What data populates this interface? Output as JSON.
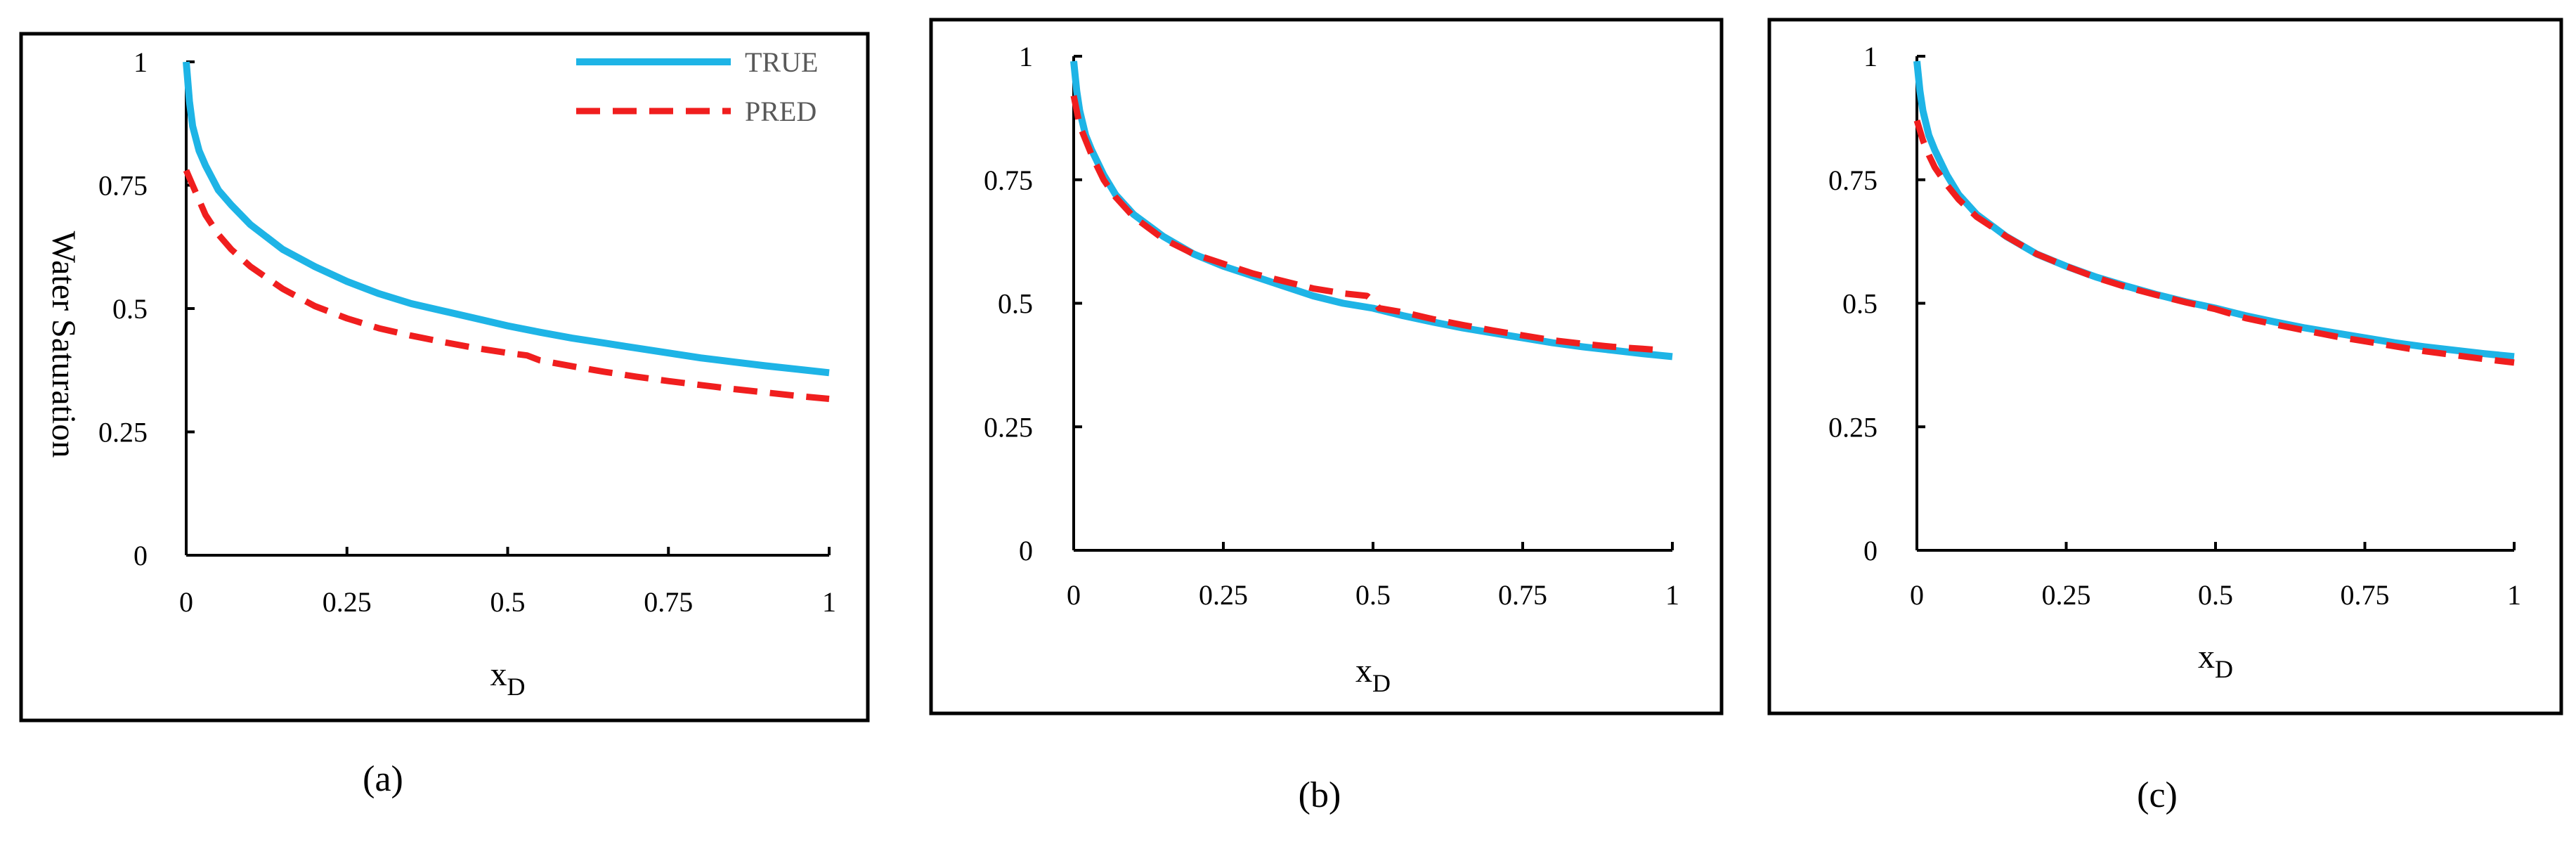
{
  "figure": {
    "colors": {
      "true_line": "#1EB4E6",
      "pred_line": "#F01E1E",
      "frame": "#000000",
      "background": "#FFFFFF"
    }
  },
  "chart_data": [
    {
      "type": "line",
      "caption": "(a)",
      "xlabel": "x",
      "xlabel_subscript": "D",
      "ylabel": "Water Saturation",
      "xlim": [
        0,
        1
      ],
      "ylim": [
        0,
        1
      ],
      "xticks": [
        "0",
        "0.25",
        "0.5",
        "0.75",
        "1"
      ],
      "yticks": [
        "0",
        "0.25",
        "0.5",
        "0.75",
        "1"
      ],
      "grid": false,
      "legend": {
        "position": "top-right",
        "entries": [
          "TRUE",
          "PRED"
        ]
      },
      "series": [
        {
          "name": "TRUE",
          "style": "solid",
          "x": [
            0,
            0.005,
            0.01,
            0.02,
            0.03,
            0.05,
            0.07,
            0.1,
            0.15,
            0.2,
            0.25,
            0.3,
            0.35,
            0.4,
            0.45,
            0.5,
            0.55,
            0.6,
            0.65,
            0.7,
            0.75,
            0.8,
            0.85,
            0.9,
            0.95,
            1.0
          ],
          "y": [
            1.0,
            0.92,
            0.87,
            0.82,
            0.79,
            0.74,
            0.71,
            0.67,
            0.62,
            0.585,
            0.555,
            0.53,
            0.51,
            0.495,
            0.48,
            0.465,
            0.452,
            0.44,
            0.43,
            0.42,
            0.41,
            0.4,
            0.392,
            0.384,
            0.377,
            0.37
          ]
        },
        {
          "name": "PRED",
          "style": "dashed",
          "x": [
            0,
            0.01,
            0.02,
            0.03,
            0.05,
            0.07,
            0.1,
            0.15,
            0.2,
            0.25,
            0.3,
            0.35,
            0.4,
            0.45,
            0.5,
            0.53,
            0.55,
            0.6,
            0.65,
            0.7,
            0.75,
            0.8,
            0.85,
            0.9,
            0.95,
            1.0
          ],
          "y": [
            0.78,
            0.75,
            0.72,
            0.69,
            0.65,
            0.62,
            0.585,
            0.54,
            0.505,
            0.48,
            0.46,
            0.445,
            0.432,
            0.42,
            0.41,
            0.405,
            0.395,
            0.383,
            0.372,
            0.362,
            0.353,
            0.345,
            0.337,
            0.33,
            0.323,
            0.317
          ]
        }
      ]
    },
    {
      "type": "line",
      "caption": "(b)",
      "xlabel": "x",
      "xlabel_subscript": "D",
      "ylabel": "",
      "xlim": [
        0,
        1
      ],
      "ylim": [
        0,
        1
      ],
      "xticks": [
        "0",
        "0.25",
        "0.5",
        "0.75",
        "1"
      ],
      "yticks": [
        "0",
        "0.25",
        "0.5",
        "0.75",
        "1"
      ],
      "grid": false,
      "series": [
        {
          "name": "TRUE",
          "style": "solid",
          "x": [
            0,
            0.005,
            0.01,
            0.02,
            0.03,
            0.05,
            0.07,
            0.1,
            0.15,
            0.2,
            0.25,
            0.3,
            0.35,
            0.4,
            0.45,
            0.5,
            0.55,
            0.6,
            0.65,
            0.7,
            0.75,
            0.8,
            0.85,
            0.9,
            0.95,
            1.0
          ],
          "y": [
            0.99,
            0.93,
            0.89,
            0.84,
            0.81,
            0.76,
            0.72,
            0.68,
            0.635,
            0.6,
            0.575,
            0.555,
            0.535,
            0.515,
            0.5,
            0.49,
            0.475,
            0.462,
            0.45,
            0.44,
            0.43,
            0.42,
            0.412,
            0.405,
            0.398,
            0.392
          ]
        },
        {
          "name": "PRED",
          "style": "dashed",
          "x": [
            0,
            0.01,
            0.02,
            0.03,
            0.05,
            0.07,
            0.1,
            0.15,
            0.2,
            0.25,
            0.3,
            0.35,
            0.4,
            0.45,
            0.49,
            0.5,
            0.51,
            0.55,
            0.6,
            0.65,
            0.7,
            0.75,
            0.8,
            0.85,
            0.9,
            0.95,
            0.98
          ],
          "y": [
            0.92,
            0.86,
            0.83,
            0.8,
            0.75,
            0.715,
            0.675,
            0.63,
            0.6,
            0.58,
            0.56,
            0.545,
            0.53,
            0.52,
            0.515,
            0.505,
            0.49,
            0.482,
            0.468,
            0.456,
            0.445,
            0.435,
            0.425,
            0.418,
            0.412,
            0.408,
            0.405
          ]
        }
      ]
    },
    {
      "type": "line",
      "caption": "(c)",
      "xlabel": "x",
      "xlabel_subscript": "D",
      "ylabel": "",
      "xlim": [
        0,
        1
      ],
      "ylim": [
        0,
        1
      ],
      "xticks": [
        "0",
        "0.25",
        "0.5",
        "0.75",
        "1"
      ],
      "yticks": [
        "0",
        "0.25",
        "0.5",
        "0.75",
        "1"
      ],
      "grid": false,
      "series": [
        {
          "name": "TRUE",
          "style": "solid",
          "x": [
            0,
            0.005,
            0.01,
            0.02,
            0.03,
            0.05,
            0.07,
            0.1,
            0.15,
            0.2,
            0.25,
            0.3,
            0.35,
            0.4,
            0.45,
            0.5,
            0.55,
            0.6,
            0.65,
            0.7,
            0.75,
            0.8,
            0.85,
            0.9,
            0.95,
            1.0
          ],
          "y": [
            0.99,
            0.93,
            0.89,
            0.84,
            0.81,
            0.76,
            0.72,
            0.68,
            0.635,
            0.6,
            0.575,
            0.553,
            0.535,
            0.518,
            0.503,
            0.49,
            0.475,
            0.462,
            0.45,
            0.44,
            0.43,
            0.42,
            0.412,
            0.405,
            0.398,
            0.392
          ]
        },
        {
          "name": "PRED",
          "style": "dashed",
          "x": [
            0,
            0.01,
            0.02,
            0.03,
            0.05,
            0.07,
            0.1,
            0.15,
            0.2,
            0.25,
            0.3,
            0.35,
            0.4,
            0.45,
            0.5,
            0.55,
            0.6,
            0.65,
            0.7,
            0.75,
            0.8,
            0.85,
            0.9,
            0.95,
            1.0
          ],
          "y": [
            0.87,
            0.83,
            0.8,
            0.775,
            0.74,
            0.71,
            0.675,
            0.635,
            0.6,
            0.575,
            0.552,
            0.533,
            0.517,
            0.502,
            0.488,
            0.47,
            0.457,
            0.445,
            0.433,
            0.423,
            0.413,
            0.403,
            0.395,
            0.387,
            0.38
          ]
        }
      ]
    }
  ]
}
